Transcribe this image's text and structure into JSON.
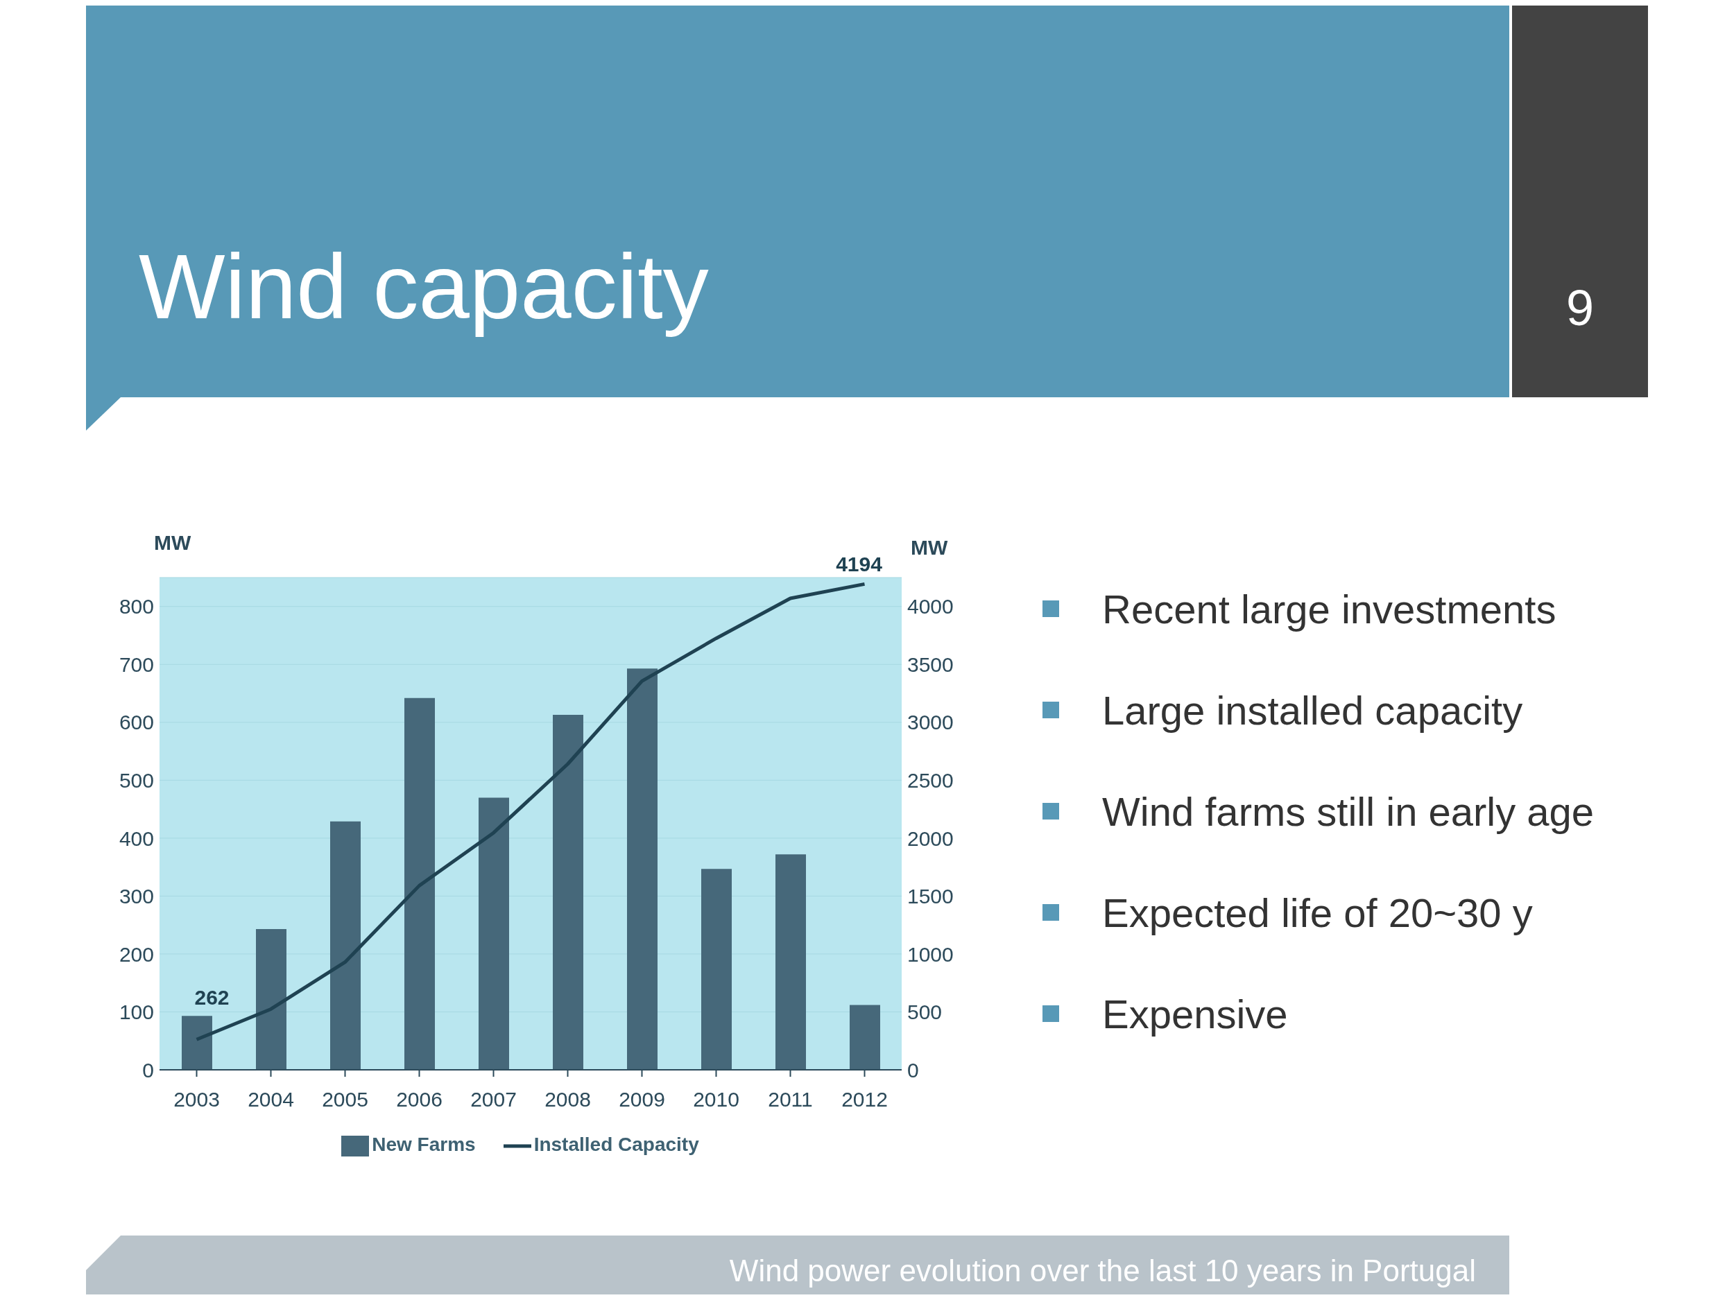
{
  "chart_data": {
    "type": "bar",
    "title": "Wind capacity",
    "categories": [
      "2003",
      "2004",
      "2005",
      "2006",
      "2007",
      "2008",
      "2009",
      "2010",
      "2011",
      "2012"
    ],
    "series": [
      {
        "name": "New Farms",
        "color": "#46687a",
        "values": [
          93,
          243,
          429,
          642,
          470,
          613,
          693,
          347,
          372,
          112
        ]
      },
      {
        "name": "Installed Capacity",
        "type": "line",
        "axis": "y2",
        "color": "#1f4252",
        "values": [
          262,
          524,
          930,
          1590,
          2046,
          2640,
          3356,
          3725,
          4070,
          4194
        ],
        "value_labels": [
          "262",
          null,
          null,
          null,
          null,
          null,
          null,
          null,
          null,
          "4194"
        ]
      }
    ],
    "ylabel": "MW",
    "y2label": "MW",
    "ylim": [
      0,
      850
    ],
    "yticks": [
      0,
      100,
      200,
      300,
      400,
      500,
      600,
      700,
      800
    ],
    "y2lim": [
      0,
      4250
    ],
    "y2ticks": [
      0,
      500,
      1000,
      1500,
      2000,
      2500,
      3000,
      3500,
      4000
    ],
    "grid": "y",
    "legend": "bottom",
    "marker": "none",
    "annotations": [
      "9",
      "Recent large investments",
      "Large installed capacity",
      "Wind farms still in early age",
      "Expected life of 20~30 y",
      "Expensive",
      "Wind power evolution over the last 10 years in Portugal"
    ]
  }
}
